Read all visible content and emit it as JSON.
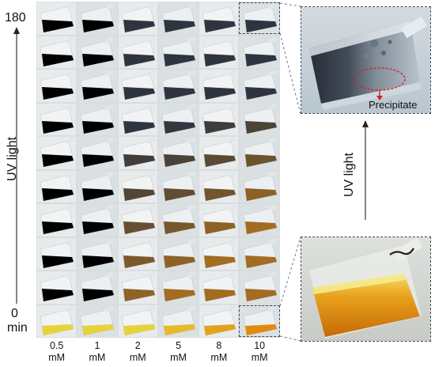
{
  "figure": {
    "time_axis": {
      "label": "UV light",
      "top_value": "180",
      "bottom_value": "0",
      "bottom_unit": "min"
    },
    "concentrations": [
      {
        "value": "0.5",
        "unit": "mM"
      },
      {
        "value": "1",
        "unit": "mM"
      },
      {
        "value": "2",
        "unit": "mM"
      },
      {
        "value": "5",
        "unit": "mM"
      },
      {
        "value": "8",
        "unit": "mM"
      },
      {
        "value": "10",
        "unit": "mM"
      }
    ],
    "row_count": 10,
    "inset_top": {
      "annotation": "Precipitate"
    },
    "inset_arrow_label": "UV light",
    "colors": {
      "yellow_initial": "#e8d23a",
      "orange": "#e08a10",
      "dark_red": "#6e2a34",
      "dark_gray": "#2f3540",
      "dashed_border": "#3a4a5c",
      "annotation_red": "#d42020"
    }
  }
}
